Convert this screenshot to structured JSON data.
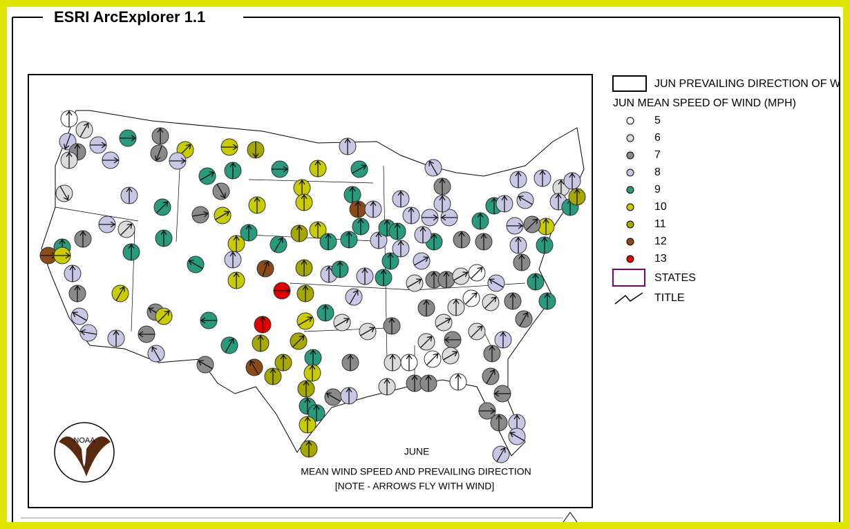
{
  "window": {
    "title": "ESRI ArcExplorer 1.1"
  },
  "map": {
    "labels": {
      "month": "JUNE",
      "title": "MEAN WIND SPEED AND PREVAILING DIRECTION",
      "note": "[NOTE - ARROWS FLY WITH WIND]",
      "logo": "NOAA"
    }
  },
  "legend": {
    "direction_layer": "JUN PREVAILING DIRECTION OF WIND",
    "speed_layer": "JUN MEAN SPEED OF WIND (MPH)",
    "speed_classes": [
      {
        "value": 5,
        "color": "#ffffff"
      },
      {
        "value": 6,
        "color": "#dcdcdc"
      },
      {
        "value": 7,
        "color": "#8a8a8a"
      },
      {
        "value": 8,
        "color": "#c8c8e6"
      },
      {
        "value": 9,
        "color": "#2a9a7c"
      },
      {
        "value": 10,
        "color": "#c8cc00"
      },
      {
        "value": 11,
        "color": "#a6a800"
      },
      {
        "value": 12,
        "color": "#8b4a1a"
      },
      {
        "value": 13,
        "color": "#e00000"
      }
    ],
    "states_layer": "STATES",
    "title_layer": "TITLE"
  }
}
